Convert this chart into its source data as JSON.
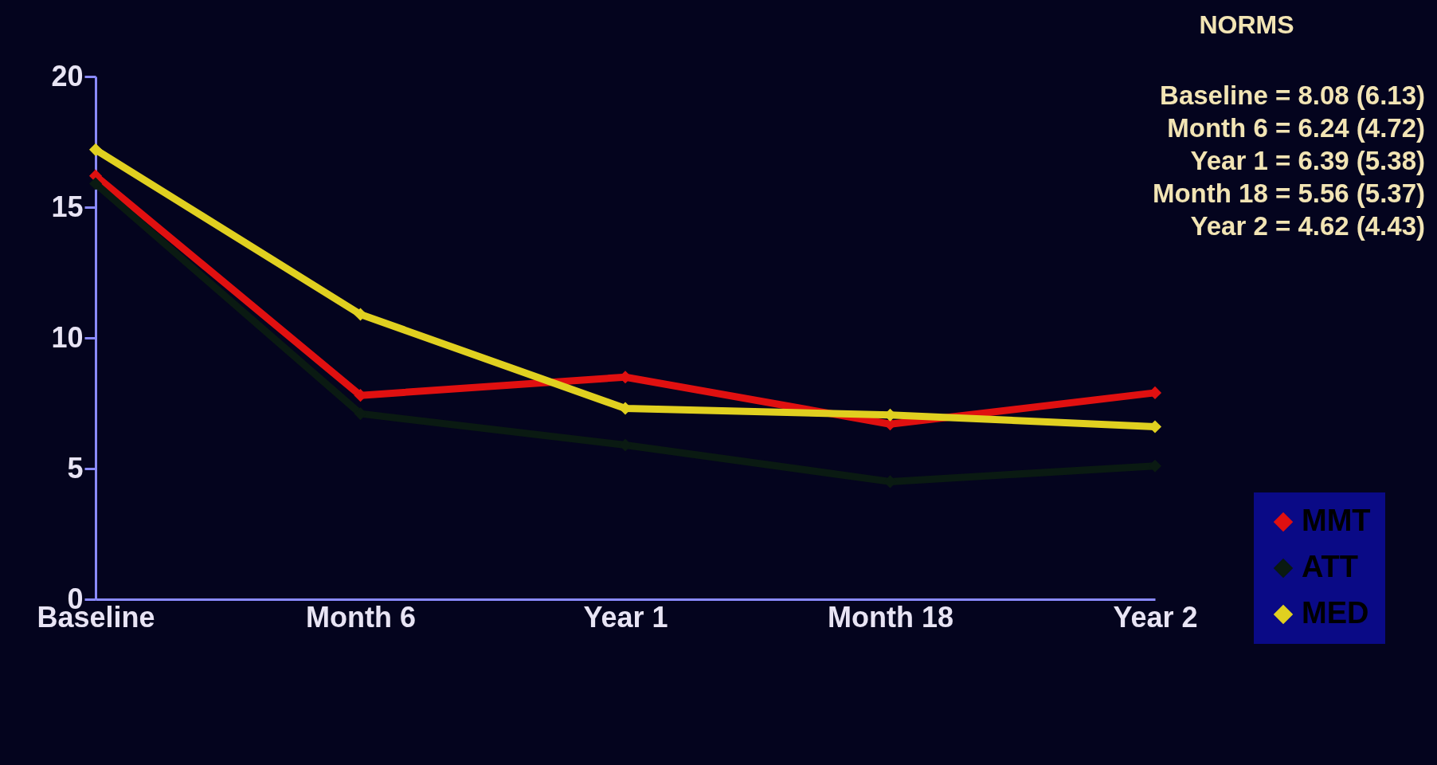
{
  "chart_data": {
    "type": "line",
    "categories": [
      "Baseline",
      "Month 6",
      "Year 1",
      "Month 18",
      "Year 2"
    ],
    "series": [
      {
        "name": "MMT",
        "color": "#e01010",
        "values": [
          16.2,
          7.8,
          8.5,
          6.7,
          7.9
        ]
      },
      {
        "name": "ATT",
        "color": "#0a1a12",
        "values": [
          15.9,
          7.1,
          5.9,
          4.5,
          5.1
        ]
      },
      {
        "name": "MED",
        "color": "#e0d020",
        "values": [
          17.2,
          10.9,
          7.3,
          7.05,
          6.6
        ]
      }
    ],
    "ylim": [
      0,
      20
    ],
    "yticks": [
      0,
      5,
      10,
      15,
      20
    ],
    "legend": "bottom right",
    "marker": "diamond",
    "annotations": [
      "NORMS",
      "Baseline = 8.08 (6.13)",
      "Month 6 = 6.24 (4.72)",
      "Year 1 = 6.39 (5.38)",
      "Month 18 = 5.56 (5.37)",
      "Year 2 = 4.62 (4.43)"
    ]
  }
}
